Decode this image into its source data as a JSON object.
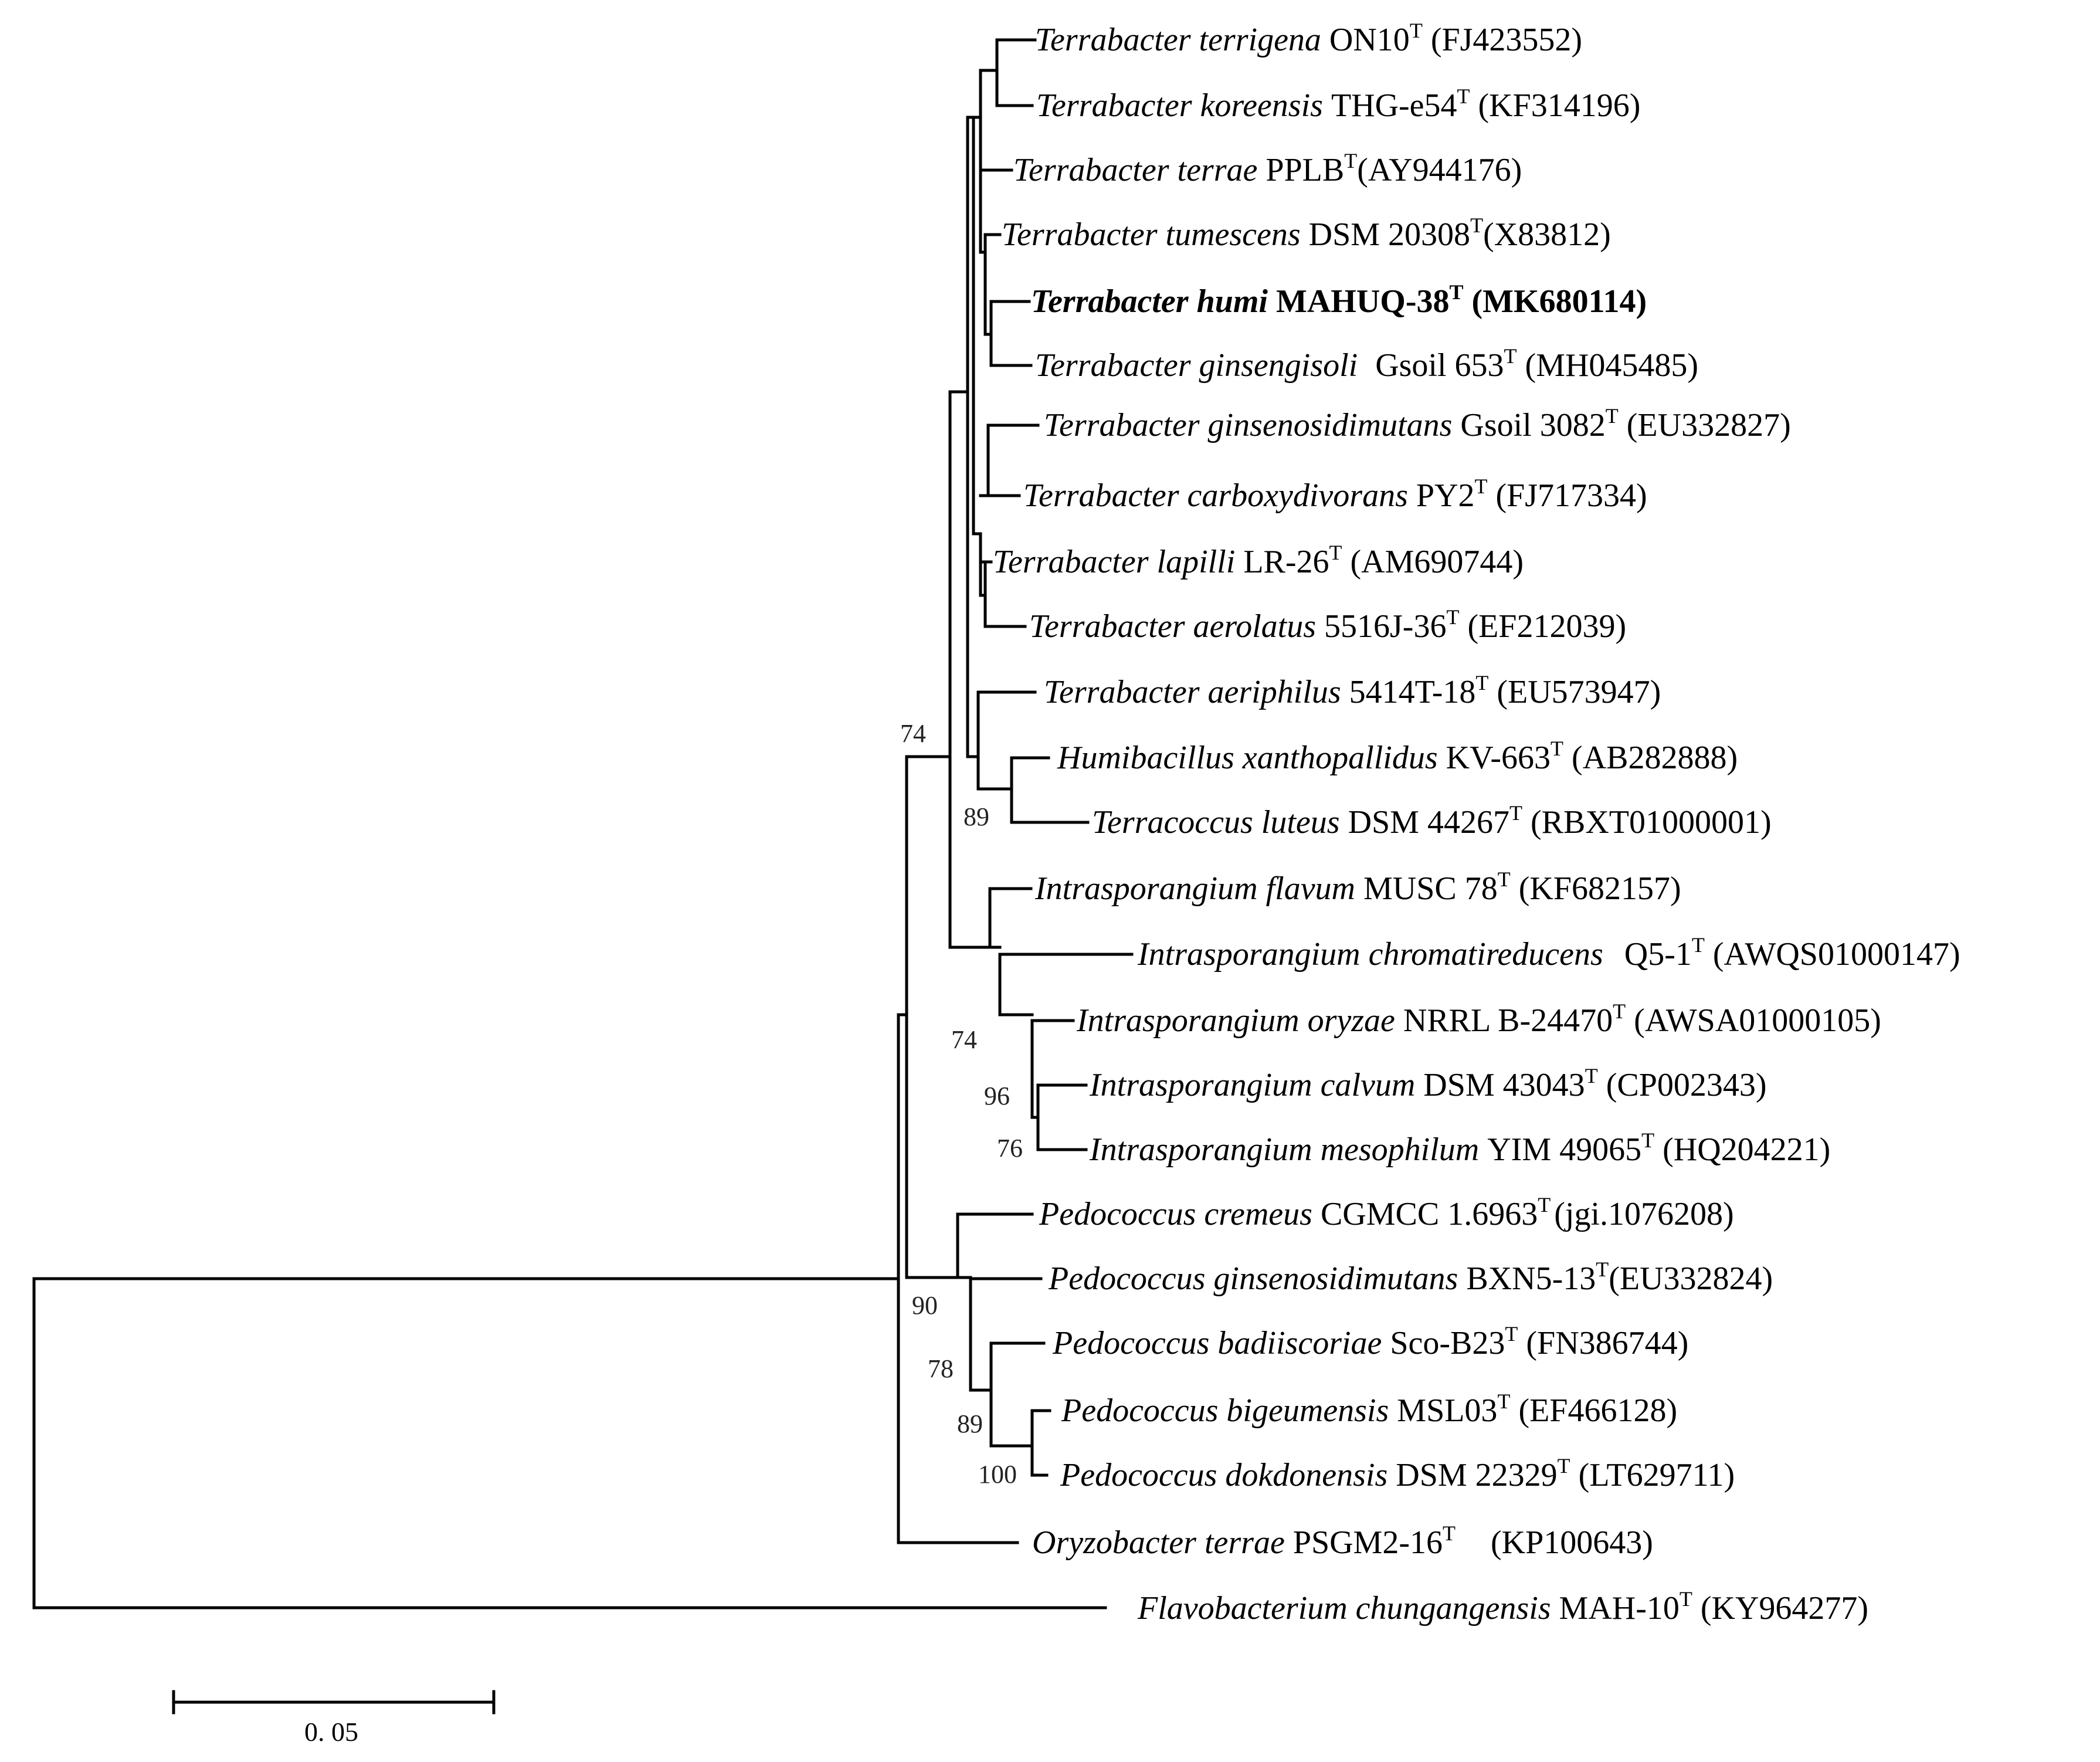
{
  "figure": {
    "type": "phylogenetic-tree",
    "scale_bar": {
      "value": 0.05,
      "label": "0. 05"
    }
  },
  "taxa": [
    {
      "species": "Terrabacter terrigena",
      "strain": "ON10",
      "sup": "T",
      "accession": "(FJ423552)"
    },
    {
      "species": "Terrabacter koreensis",
      "strain": "THG-e54",
      "sup": "T",
      "accession": "(KF314196)"
    },
    {
      "species": "Terrabacter terrae",
      "strain": "PPLB",
      "sup": "T",
      "accession": "(AY944176)"
    },
    {
      "species": "Terrabacter tumescens",
      "strain": "DSM 20308",
      "sup": "T",
      "accession": "(X83812)"
    },
    {
      "species": "Terrabacter humi",
      "strain": "MAHUQ-38",
      "sup": "T",
      "accession": "(MK680114)",
      "highlight": true
    },
    {
      "species": "Terrabacter ginsengisoli",
      "strain": "Gsoil 653",
      "sup": "T",
      "accession": "(MH045485)"
    },
    {
      "species": "Terrabacter ginsenosidimutans",
      "strain": "Gsoil 3082",
      "sup": "T",
      "accession": "(EU332827)"
    },
    {
      "species": "Terrabacter carboxydivorans",
      "strain": "PY2",
      "sup": "T",
      "accession": "(FJ717334)"
    },
    {
      "species": "Terrabacter lapilli",
      "strain": "LR-26",
      "sup": "T",
      "accession": "(AM690744)"
    },
    {
      "species": "Terrabacter aerolatus",
      "strain": "5516J-36",
      "sup": "T",
      "accession": "(EF212039)"
    },
    {
      "species": "Terrabacter aeriphilus",
      "strain": "5414T-18",
      "sup": "T",
      "accession": "(EU573947)"
    },
    {
      "species": "Humibacillus xanthopallidus",
      "strain": "KV-663",
      "sup": "T",
      "accession": "(AB282888)"
    },
    {
      "species": "Terracoccus luteus",
      "strain": "DSM 44267",
      "sup": "T",
      "accession": "(RBXT01000001)"
    },
    {
      "species": "Intrasporangium flavum",
      "strain": "MUSC 78",
      "sup": "T",
      "accession": "(KF682157)"
    },
    {
      "species": "Intrasporangium chromatireducens",
      "strain": "Q5-1",
      "sup": "T",
      "accession": "(AWQS01000147)"
    },
    {
      "species": "Intrasporangium oryzae",
      "strain": "NRRL B-24470",
      "sup": "T",
      "accession": "(AWSA01000105)"
    },
    {
      "species": "Intrasporangium calvum",
      "strain": "DSM 43043",
      "sup": "T",
      "accession": "(CP002343)"
    },
    {
      "species": "Intrasporangium mesophilum",
      "strain": "YIM 49065",
      "sup": "T",
      "accession": "(HQ204221)"
    },
    {
      "species": "Pedococcus cremeus",
      "strain": "CGMCC 1.6963",
      "sup": "T",
      "accession": "(jgi.1076208)"
    },
    {
      "species": "Pedococcus ginsenosidimutans",
      "strain": "BXN5-13",
      "sup": "T",
      "accession": "(EU332824)"
    },
    {
      "species": "Pedococcus badiiscoriae",
      "strain": "Sco-B23",
      "sup": "T",
      "accession": "(FN386744)"
    },
    {
      "species": "Pedococcus bigeumensis",
      "strain": "MSL03",
      "sup": "T",
      "accession": "(EF466128)"
    },
    {
      "species": "Pedococcus dokdonensis",
      "strain": "DSM 22329",
      "sup": "T",
      "accession": "(LT629711)"
    },
    {
      "species": "Oryzobacter terrae",
      "strain": "PSGM2-16",
      "sup": "T",
      "accession": "(KP100643)"
    },
    {
      "species": "Flavobacterium chungangensis",
      "strain": "MAH-10",
      "sup": "T",
      "accession": "(KY964277)"
    }
  ],
  "bootstrap": [
    "74",
    "89",
    "74",
    "96",
    "76",
    "90",
    "78",
    "89",
    "100"
  ]
}
